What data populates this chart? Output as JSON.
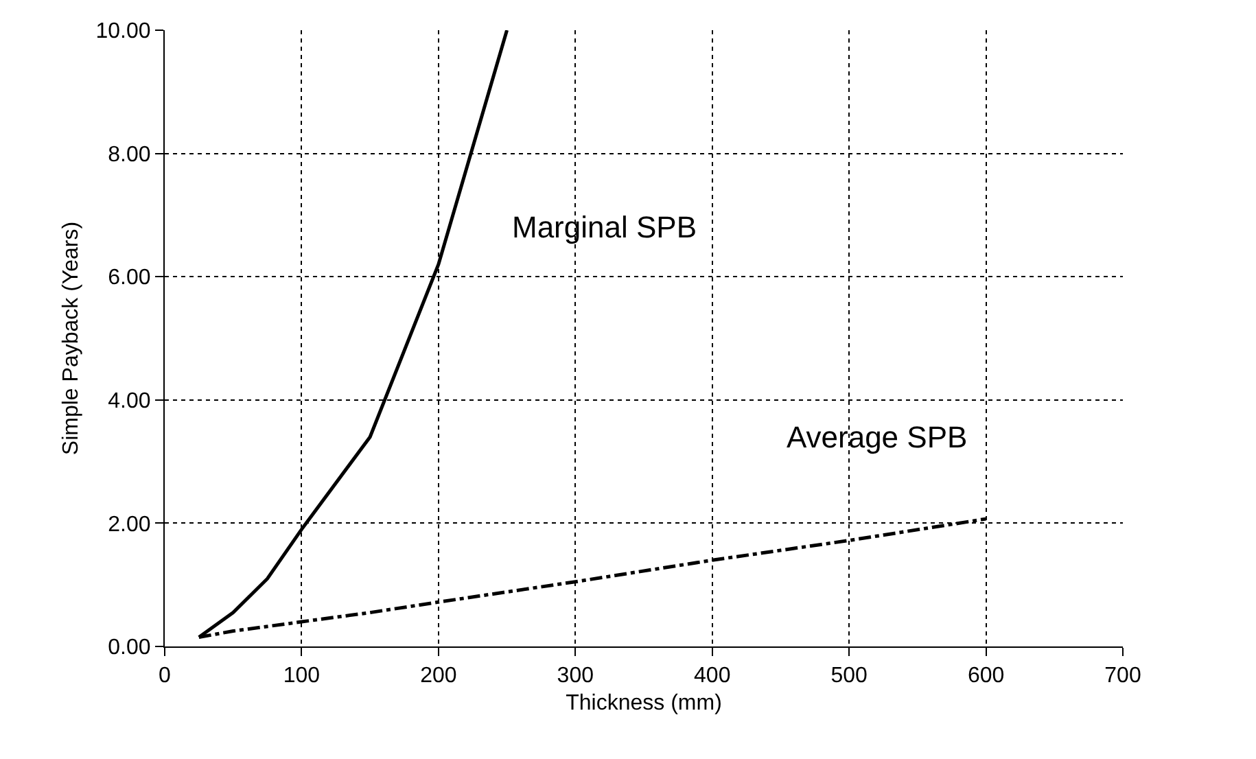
{
  "chart_data": {
    "type": "line",
    "xlabel": "Thickness (mm)",
    "ylabel": "Simple Payback (Years)",
    "series": [
      {
        "name": "Marginal SPB",
        "color": "#000000",
        "line_style": "solid",
        "x": [
          25,
          50,
          75,
          100,
          150,
          200,
          250
        ],
        "values": [
          0.15,
          0.55,
          1.1,
          1.9,
          3.4,
          6.2,
          10.0
        ]
      },
      {
        "name": "Average SPB",
        "color": "#000000",
        "line_style": "dashed",
        "x": [
          25,
          50,
          100,
          150,
          200,
          300,
          400,
          500,
          600
        ],
        "values": [
          0.15,
          0.25,
          0.4,
          0.55,
          0.72,
          1.05,
          1.4,
          1.72,
          2.07
        ]
      }
    ],
    "xlim": [
      0,
      700
    ],
    "xticks": [
      0,
      100,
      200,
      300,
      400,
      500,
      600,
      700
    ],
    "ylim": [
      0,
      10
    ],
    "yticks": [
      {
        "value": 0,
        "label": "0.00"
      },
      {
        "value": 2,
        "label": "2.00"
      },
      {
        "value": 4,
        "label": "4.00"
      },
      {
        "value": 6,
        "label": "6.00"
      },
      {
        "value": 8,
        "label": "8.00"
      },
      {
        "value": 10,
        "label": "10.00"
      }
    ],
    "grid": true
  }
}
